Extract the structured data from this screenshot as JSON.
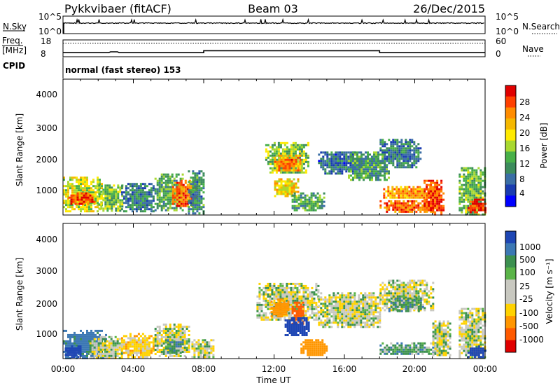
{
  "header": {
    "radar": "Pykkvibaer (fitACF)",
    "beam": "Beam 03",
    "date": "26/Dec/2015"
  },
  "status_panels": {
    "sky": {
      "left_label": "N.Sky",
      "left_ticks": [
        "10^5",
        "10^0"
      ],
      "right_label": "N.Search",
      "right_ticks": [
        "10^5",
        "10^0"
      ]
    },
    "freq": {
      "left_label_1": "Freq.",
      "left_label_2": "[MHz]",
      "left_ticks": [
        "18",
        "8"
      ],
      "right_label": "Nave",
      "right_ticks": [
        "60",
        "0"
      ],
      "freq_value_mhz": [
        {
          "t": 0.0,
          "v": 10.4
        },
        {
          "t": 2.6,
          "v": 10.4
        },
        {
          "t": 2.7,
          "v": 10.9
        },
        {
          "t": 3.1,
          "v": 10.9
        },
        {
          "t": 3.2,
          "v": 10.4
        },
        {
          "t": 8.0,
          "v": 10.4
        },
        {
          "t": 8.0,
          "v": 11.6
        },
        {
          "t": 18.0,
          "v": 11.6
        },
        {
          "t": 18.0,
          "v": 10.4
        },
        {
          "t": 24.0,
          "v": 10.4
        }
      ],
      "nave_value": [
        {
          "t": 0.0,
          "v": 48
        },
        {
          "t": 24.0,
          "v": 48
        }
      ]
    },
    "cpid": {
      "label": "CPID",
      "value": "normal (fast stereo) 153"
    }
  },
  "x_axis": {
    "label": "Time UT",
    "ticks": [
      "00:00",
      "04:00",
      "08:00",
      "12:00",
      "16:00",
      "20:00",
      "00:00"
    ]
  },
  "panels": [
    {
      "id": "power",
      "ylabel": "Slant Range [km]",
      "yticks": [
        "4000",
        "3000",
        "2000",
        "1000"
      ],
      "colorbar_label": "Power [dB]",
      "colorbar_ticks": [
        "28",
        "24",
        "20",
        "16",
        "12",
        "8",
        "4"
      ],
      "colorbar_colors": [
        "#e00000",
        "#ff4000",
        "#ff8c00",
        "#f5b800",
        "#ffea00",
        "#a8d830",
        "#48b048",
        "#3c8c5c",
        "#3a6ea5",
        "#1a3cb0",
        "#0000ff"
      ]
    },
    {
      "id": "velocity",
      "ylabel": "Slant Range [km]",
      "yticks": [
        "4000",
        "3000",
        "2000",
        "1000"
      ],
      "colorbar_label": "Velocity [m s⁻¹]",
      "colorbar_ticks": [
        "1000",
        "500",
        "100",
        "25",
        "-25",
        "-100",
        "-500",
        "-1000"
      ],
      "colorbar_colors": [
        "#1e46b4",
        "#3c78b4",
        "#3c9050",
        "#5ab448",
        "#c8c8c0",
        "#c8c8c0",
        "#ffd200",
        "#ff9600",
        "#ff5a00",
        "#e00000"
      ]
    }
  ],
  "chart_data": {
    "type": "heatmap",
    "x_unit": "hours UT",
    "xlim": [
      0,
      24
    ],
    "ylim_km": [
      180,
      4500
    ],
    "power_db_blobs": [
      {
        "t0": 0.0,
        "t1": 2.2,
        "r0": 300,
        "r1": 1400,
        "v": 17
      },
      {
        "t0": 0.3,
        "t1": 1.8,
        "r0": 500,
        "r1": 900,
        "v": 25
      },
      {
        "t0": 2.0,
        "t1": 3.4,
        "r0": 300,
        "r1": 1150,
        "v": 15
      },
      {
        "t0": 3.3,
        "t1": 5.2,
        "r0": 280,
        "r1": 1200,
        "v": 10
      },
      {
        "t0": 5.2,
        "t1": 6.8,
        "r0": 300,
        "r1": 1500,
        "v": 13
      },
      {
        "t0": 6.2,
        "t1": 7.6,
        "r0": 450,
        "r1": 1300,
        "v": 24
      },
      {
        "t0": 7.1,
        "t1": 8.0,
        "r0": 200,
        "r1": 1600,
        "v": 11
      },
      {
        "t0": 11.5,
        "t1": 14.0,
        "r0": 1500,
        "r1": 2500,
        "v": 15
      },
      {
        "t0": 12.0,
        "t1": 13.5,
        "r0": 1600,
        "r1": 2100,
        "v": 23
      },
      {
        "t0": 12.0,
        "t1": 13.4,
        "r0": 800,
        "r1": 1350,
        "v": 19
      },
      {
        "t0": 13.0,
        "t1": 14.8,
        "r0": 300,
        "r1": 900,
        "v": 13
      },
      {
        "t0": 14.5,
        "t1": 17.0,
        "r0": 1500,
        "r1": 2200,
        "v": 9
      },
      {
        "t0": 16.2,
        "t1": 18.5,
        "r0": 1300,
        "r1": 2200,
        "v": 12
      },
      {
        "t0": 18.0,
        "t1": 20.3,
        "r0": 1700,
        "r1": 2600,
        "v": 10
      },
      {
        "t0": 18.2,
        "t1": 21.5,
        "r0": 700,
        "r1": 1100,
        "v": 22
      },
      {
        "t0": 18.0,
        "t1": 21.0,
        "r0": 280,
        "r1": 650,
        "v": 24
      },
      {
        "t0": 20.5,
        "t1": 21.6,
        "r0": 200,
        "r1": 1300,
        "v": 26
      },
      {
        "t0": 22.5,
        "t1": 24.0,
        "r0": 200,
        "r1": 1700,
        "v": 14
      },
      {
        "t0": 23.0,
        "t1": 24.0,
        "r0": 250,
        "r1": 700,
        "v": 27
      }
    ],
    "velocity_ms_blobs": [
      {
        "t0": 0.0,
        "t1": 2.5,
        "r0": 200,
        "r1": 1100,
        "v": 150
      },
      {
        "t0": 0.1,
        "t1": 1.0,
        "r0": 250,
        "r1": 600,
        "v": 700
      },
      {
        "t0": 1.5,
        "t1": 3.4,
        "r0": 200,
        "r1": 900,
        "v": 0
      },
      {
        "t0": 3.3,
        "t1": 5.2,
        "r0": 250,
        "r1": 1000,
        "v": -60
      },
      {
        "t0": 5.2,
        "t1": 7.2,
        "r0": 250,
        "r1": 1300,
        "v": 0
      },
      {
        "t0": 5.8,
        "t1": 6.8,
        "r0": 350,
        "r1": 800,
        "v": 60
      },
      {
        "t0": 7.3,
        "t1": 8.5,
        "r0": 200,
        "r1": 800,
        "v": 0
      },
      {
        "t0": 11.0,
        "t1": 14.5,
        "r0": 1400,
        "r1": 2600,
        "v": 0
      },
      {
        "t0": 11.8,
        "t1": 12.8,
        "r0": 1500,
        "r1": 2100,
        "v": -300
      },
      {
        "t0": 13.0,
        "t1": 13.6,
        "r0": 1300,
        "r1": 2000,
        "v": -600
      },
      {
        "t0": 12.6,
        "t1": 14.0,
        "r0": 900,
        "r1": 1500,
        "v": 700
      },
      {
        "t0": 13.5,
        "t1": 15.0,
        "r0": 300,
        "r1": 800,
        "v": -300
      },
      {
        "t0": 14.5,
        "t1": 18.0,
        "r0": 1200,
        "r1": 2300,
        "v": 0
      },
      {
        "t0": 18.0,
        "t1": 21.0,
        "r0": 1700,
        "r1": 2700,
        "v": 0
      },
      {
        "t0": 18.5,
        "t1": 20.5,
        "r0": 1700,
        "r1": 2200,
        "v": 60
      },
      {
        "t0": 18.0,
        "t1": 21.3,
        "r0": 300,
        "r1": 700,
        "v": 60
      },
      {
        "t0": 21.0,
        "t1": 22.0,
        "r0": 300,
        "r1": 1400,
        "v": 0
      },
      {
        "t0": 22.5,
        "t1": 24.0,
        "r0": 200,
        "r1": 1800,
        "v": 0
      },
      {
        "t0": 23.0,
        "t1": 24.0,
        "r0": 200,
        "r1": 600,
        "v": 700
      }
    ]
  }
}
